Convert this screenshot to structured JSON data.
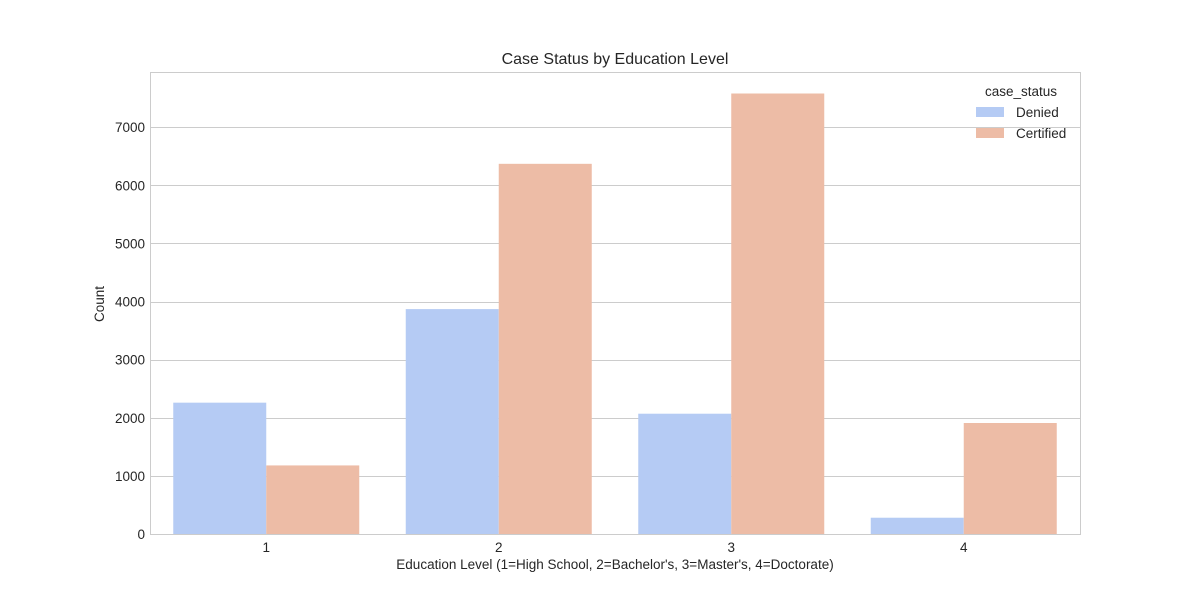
{
  "chart_data": {
    "type": "bar",
    "title": "Case Status by Education Level",
    "xlabel": "Education Level (1=High School, 2=Bachelor's, 3=Master's, 4=Doctorate)",
    "ylabel": "Count",
    "categories": [
      "1",
      "2",
      "3",
      "4"
    ],
    "ylim": [
      0,
      7950
    ],
    "yticks": [
      0,
      1000,
      2000,
      3000,
      4000,
      5000,
      6000,
      7000
    ],
    "grid": true,
    "legend": {
      "title": "case_status",
      "placement": "top-right"
    },
    "series": [
      {
        "name": "Denied",
        "color": "#b5cbf4",
        "values": [
          2260,
          3870,
          2070,
          280
        ]
      },
      {
        "name": "Certified",
        "color": "#edbca6",
        "values": [
          1180,
          6370,
          7580,
          1910
        ]
      }
    ]
  }
}
